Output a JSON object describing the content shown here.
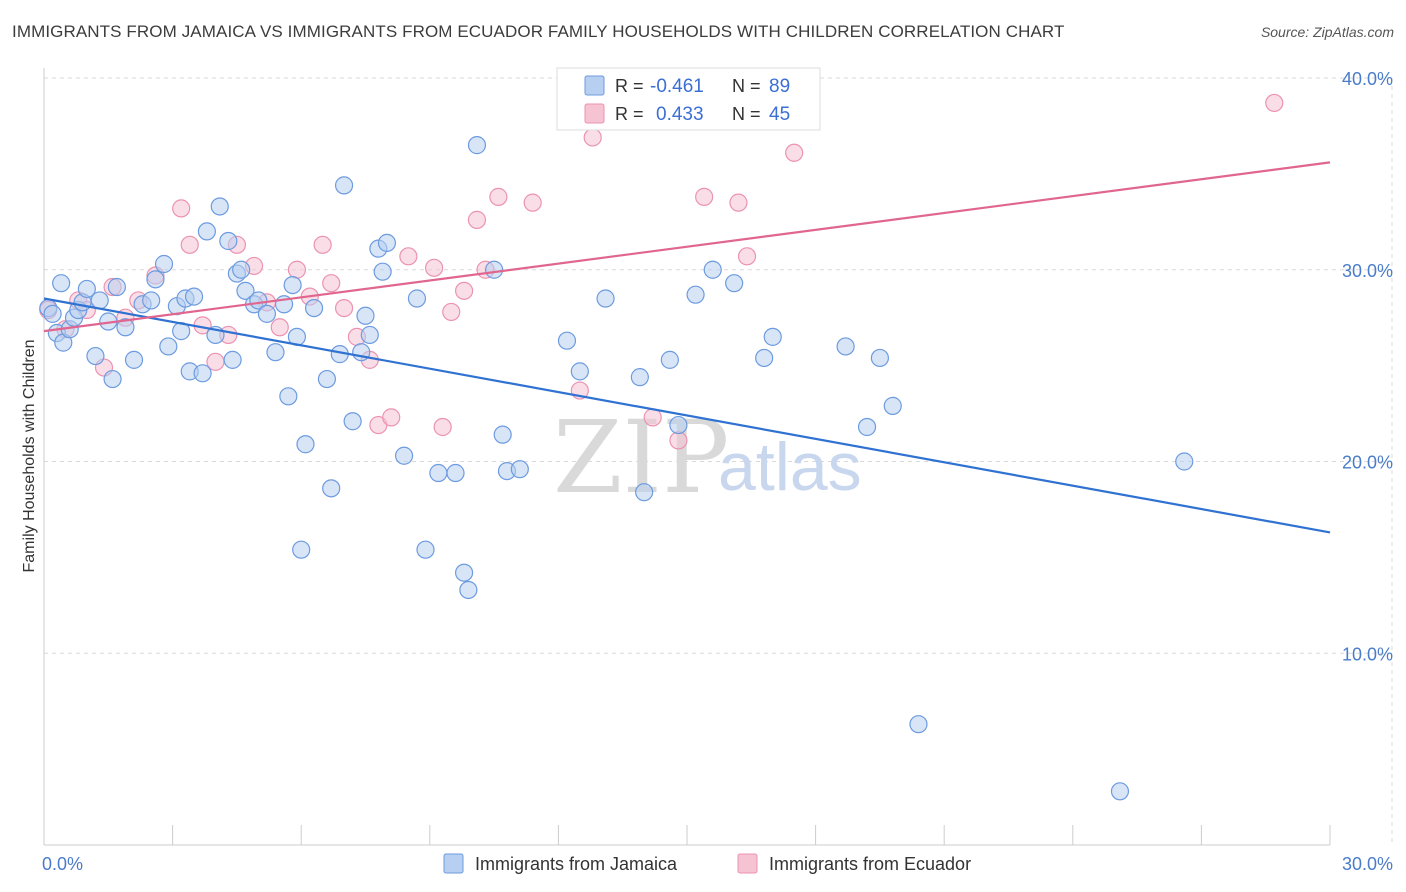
{
  "title": "IMMIGRANTS FROM JAMAICA VS IMMIGRANTS FROM ECUADOR FAMILY HOUSEHOLDS WITH CHILDREN CORRELATION CHART",
  "source": "Source: ZipAtlas.com",
  "watermark": {
    "zip": "ZIP",
    "atlas": "atlas"
  },
  "legend": {
    "r_label": "R =",
    "n_label": "N =",
    "rows": [
      {
        "r": "-0.461",
        "n": "89"
      },
      {
        "r": "0.433",
        "n": "45"
      }
    ]
  },
  "colors": {
    "jamaica_fill": "#b7cff0",
    "jamaica_stroke": "#6d9be0",
    "jamaica_line": "#2f72d1",
    "ecuador_fill": "#f6c3d3",
    "ecuador_stroke": "#eb93b1",
    "ecuador_line": "#e0668f",
    "grid": "#d9d9d9",
    "tick_text": "#4a7cc9"
  },
  "chart_data": {
    "type": "scatter",
    "xlabel": "",
    "ylabel": "Family Households with Children",
    "xlim": [
      0,
      30
    ],
    "ylim": [
      0,
      40
    ],
    "x_tick_labels": [
      {
        "value": 0,
        "label": "0.0%"
      },
      {
        "value": 30,
        "label": "30.0%"
      }
    ],
    "y_tick_labels": [
      {
        "value": 10,
        "label": "10.0%"
      },
      {
        "value": 20,
        "label": "20.0%"
      },
      {
        "value": 30,
        "label": "30.0%"
      },
      {
        "value": 40,
        "label": "40.0%"
      }
    ],
    "grid": true,
    "legend_placement": "top-center",
    "series": [
      {
        "name": "Immigrants from Jamaica",
        "trend": {
          "x": [
            0,
            30
          ],
          "y": [
            28.5,
            16.3
          ]
        },
        "points": [
          [
            0.1,
            28.0
          ],
          [
            0.2,
            27.7
          ],
          [
            0.3,
            26.7
          ],
          [
            0.4,
            29.3
          ],
          [
            0.45,
            26.2
          ],
          [
            0.6,
            26.9
          ],
          [
            0.7,
            27.5
          ],
          [
            0.8,
            27.9
          ],
          [
            0.9,
            28.3
          ],
          [
            1.0,
            29.0
          ],
          [
            1.2,
            25.5
          ],
          [
            1.3,
            28.4
          ],
          [
            1.5,
            27.3
          ],
          [
            1.6,
            24.3
          ],
          [
            1.7,
            29.1
          ],
          [
            1.9,
            27.0
          ],
          [
            2.1,
            25.3
          ],
          [
            2.3,
            28.2
          ],
          [
            2.5,
            28.4
          ],
          [
            2.6,
            29.5
          ],
          [
            2.8,
            30.3
          ],
          [
            2.9,
            26.0
          ],
          [
            3.1,
            28.1
          ],
          [
            3.2,
            26.8
          ],
          [
            3.3,
            28.5
          ],
          [
            3.4,
            24.7
          ],
          [
            3.5,
            28.6
          ],
          [
            3.7,
            24.6
          ],
          [
            3.8,
            32.0
          ],
          [
            4.0,
            26.6
          ],
          [
            4.1,
            33.3
          ],
          [
            4.3,
            31.5
          ],
          [
            4.4,
            25.3
          ],
          [
            4.5,
            29.8
          ],
          [
            4.6,
            30.0
          ],
          [
            4.7,
            28.9
          ],
          [
            4.9,
            28.2
          ],
          [
            5.0,
            28.4
          ],
          [
            5.2,
            27.7
          ],
          [
            5.4,
            25.7
          ],
          [
            5.6,
            28.2
          ],
          [
            5.7,
            23.4
          ],
          [
            5.8,
            29.2
          ],
          [
            5.9,
            26.5
          ],
          [
            6.0,
            15.4
          ],
          [
            6.1,
            20.9
          ],
          [
            6.3,
            28.0
          ],
          [
            6.6,
            24.3
          ],
          [
            6.7,
            18.6
          ],
          [
            6.9,
            25.6
          ],
          [
            7.0,
            34.4
          ],
          [
            7.2,
            22.1
          ],
          [
            7.4,
            25.7
          ],
          [
            7.5,
            27.6
          ],
          [
            7.6,
            26.6
          ],
          [
            7.8,
            31.1
          ],
          [
            7.9,
            29.9
          ],
          [
            8.0,
            31.4
          ],
          [
            8.4,
            20.3
          ],
          [
            8.7,
            28.5
          ],
          [
            8.9,
            15.4
          ],
          [
            9.2,
            19.4
          ],
          [
            9.6,
            19.4
          ],
          [
            9.8,
            14.2
          ],
          [
            9.9,
            13.3
          ],
          [
            10.1,
            36.5
          ],
          [
            10.5,
            30.0
          ],
          [
            10.7,
            21.4
          ],
          [
            10.8,
            19.5
          ],
          [
            11.1,
            19.6
          ],
          [
            12.2,
            26.3
          ],
          [
            12.5,
            24.7
          ],
          [
            13.1,
            28.5
          ],
          [
            13.9,
            24.4
          ],
          [
            14.0,
            18.4
          ],
          [
            14.6,
            25.3
          ],
          [
            14.8,
            21.9
          ],
          [
            15.2,
            28.7
          ],
          [
            15.6,
            30.0
          ],
          [
            16.1,
            29.3
          ],
          [
            16.8,
            25.4
          ],
          [
            17.0,
            26.5
          ],
          [
            18.7,
            26.0
          ],
          [
            19.2,
            21.8
          ],
          [
            19.5,
            25.4
          ],
          [
            19.8,
            22.9
          ],
          [
            20.4,
            6.3
          ],
          [
            25.1,
            2.8
          ],
          [
            26.6,
            20.0
          ]
        ]
      },
      {
        "name": "Immigrants from Ecuador",
        "trend": {
          "x": [
            0,
            30
          ],
          "y": [
            26.8,
            35.6
          ]
        },
        "points": [
          [
            0.1,
            27.9
          ],
          [
            0.5,
            26.9
          ],
          [
            0.8,
            28.4
          ],
          [
            1.0,
            27.9
          ],
          [
            1.4,
            24.9
          ],
          [
            1.6,
            29.1
          ],
          [
            1.9,
            27.5
          ],
          [
            2.2,
            28.4
          ],
          [
            2.6,
            29.7
          ],
          [
            3.2,
            33.2
          ],
          [
            3.4,
            31.3
          ],
          [
            3.7,
            27.1
          ],
          [
            4.0,
            25.2
          ],
          [
            4.3,
            26.6
          ],
          [
            4.5,
            31.3
          ],
          [
            4.9,
            30.2
          ],
          [
            5.2,
            28.3
          ],
          [
            5.5,
            27.0
          ],
          [
            5.9,
            30.0
          ],
          [
            6.2,
            28.6
          ],
          [
            6.5,
            31.3
          ],
          [
            6.7,
            29.3
          ],
          [
            7.0,
            28.0
          ],
          [
            7.3,
            26.5
          ],
          [
            7.6,
            25.3
          ],
          [
            7.8,
            21.9
          ],
          [
            8.1,
            22.3
          ],
          [
            8.5,
            30.7
          ],
          [
            9.1,
            30.1
          ],
          [
            9.3,
            21.8
          ],
          [
            9.5,
            27.8
          ],
          [
            9.8,
            28.9
          ],
          [
            10.1,
            32.6
          ],
          [
            10.3,
            30.0
          ],
          [
            10.6,
            33.8
          ],
          [
            11.4,
            33.5
          ],
          [
            12.5,
            23.7
          ],
          [
            12.8,
            36.9
          ],
          [
            14.2,
            22.3
          ],
          [
            14.8,
            21.1
          ],
          [
            15.4,
            33.8
          ],
          [
            16.2,
            33.5
          ],
          [
            16.4,
            30.7
          ],
          [
            17.5,
            36.1
          ],
          [
            28.7,
            38.7
          ]
        ]
      }
    ]
  },
  "bottom_legend": [
    {
      "label": "Immigrants from Jamaica"
    },
    {
      "label": "Immigrants from Ecuador"
    }
  ]
}
